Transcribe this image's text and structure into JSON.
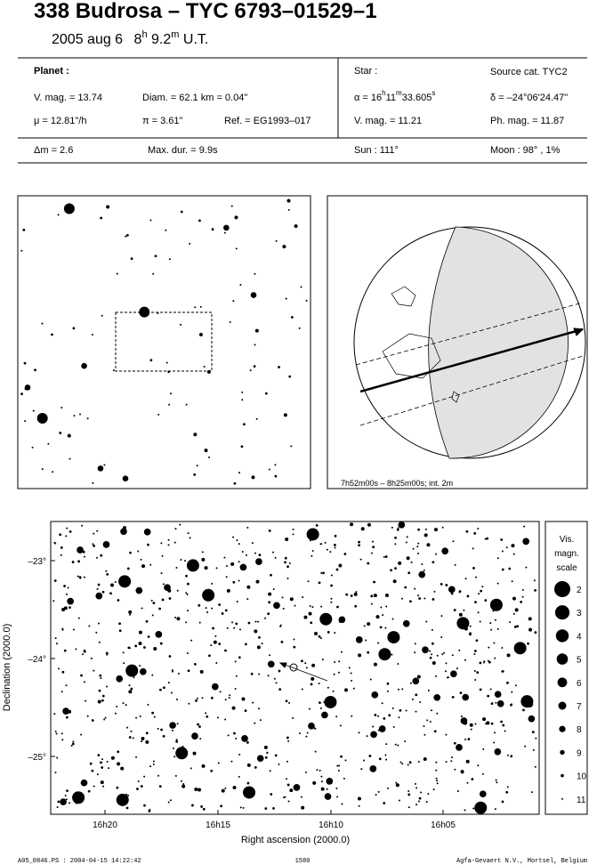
{
  "header": {
    "title": "338 Budrosa  –  TYC 6793–01529–1",
    "date": [
      "2005 aug  6",
      "8",
      "h",
      "9.2",
      "m",
      "U.T."
    ]
  },
  "planet": {
    "heading": "Planet :",
    "vmag": "V. mag. = 13.74",
    "diam": "Diam. = 62.1 km = 0.04\"",
    "mu": "μ = 12.81\"/h",
    "pi": "π =  3.61\"",
    "ref": "Ref. = EG1993–017"
  },
  "star": {
    "heading": "Star :",
    "source": "Source cat.  TYC2",
    "ra": [
      "α = 16",
      "h",
      "11",
      "m",
      "33.605",
      "s"
    ],
    "dec": "δ = –24°06'24.47\"",
    "vmag": "V. mag. = 11.21",
    "phmag": "Ph. mag. = 11.87"
  },
  "event": {
    "dm": "Δm = 2.6",
    "maxdur": "Max. dur. = 9.9s",
    "sun": "Sun : 111°",
    "moon": "Moon :  98°  ,  1%"
  },
  "globe": {
    "caption": "7h52m00s –  8h25m00s; int. 2m"
  },
  "chart": {
    "yticks": [
      "–23°",
      "–24°",
      "–25°"
    ],
    "xticks": [
      "16h20",
      "16h15",
      "16h10",
      "16h05"
    ],
    "xlabel": "Right ascension (2000.0)",
    "ylabel": "Declination (2000.0)",
    "legend_title": [
      "Vis.",
      "magn.",
      "scale"
    ],
    "legend_mags": [
      2,
      3,
      4,
      5,
      6,
      7,
      8,
      9,
      10,
      11
    ]
  },
  "footer": {
    "left": "A05_0846.PS : 2004-04-15 14:22:42",
    "center": "1580",
    "right": "Agfa-Gevaert N.V., Mortsel, Belgium"
  }
}
